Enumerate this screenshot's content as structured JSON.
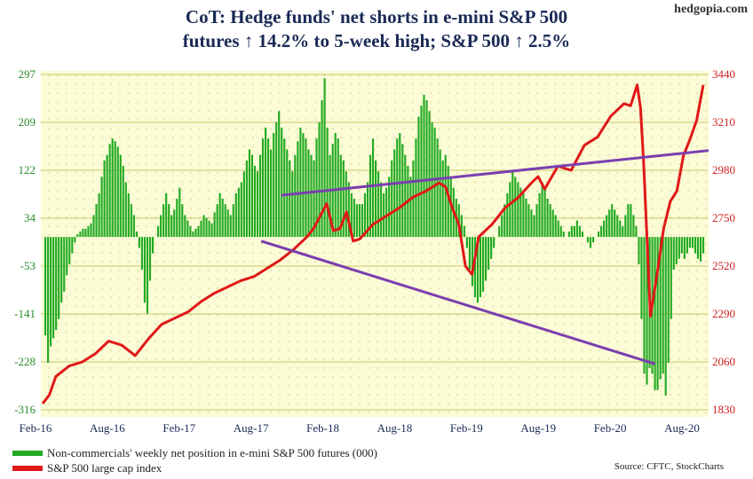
{
  "site": "hedgopia.com",
  "title_line1": "CoT: Hedge funds' net shorts in e-mini S&P 500",
  "title_line2": "futures ↑ 14.2% to 5-week high; S&P 500 ↑ 2.5%",
  "legend": {
    "bars": "Non-commercials' weekly net position in e-mini S&P 500 futures (000)",
    "line": "S&P 500 large cap index"
  },
  "source": "Source: CFTC, StockCharts",
  "colors": {
    "bars": "#22aa22",
    "line": "#e01818",
    "trend": "#7a3fb0",
    "plot_bg": "#fbfbd6",
    "grid": "#c9c96a"
  },
  "chart_data": {
    "type": "bar",
    "x_ticks": [
      "Feb-16",
      "Aug-16",
      "Feb-17",
      "Aug-17",
      "Feb-18",
      "Aug-18",
      "Feb-19",
      "Aug-19",
      "Feb-20",
      "Aug-20"
    ],
    "y_left": {
      "ticks": [
        "297",
        "209",
        "122",
        "34",
        "-53",
        "-141",
        "-228",
        "-316"
      ],
      "range": [
        -316,
        297
      ]
    },
    "y_right": {
      "ticks": [
        "3440",
        "3210",
        "2980",
        "2750",
        "2520",
        "2290",
        "2060",
        "1830"
      ],
      "range": [
        1830,
        3440
      ]
    },
    "series": [
      {
        "kind": "bar",
        "axis": "left",
        "values": [
          -180,
          -230,
          -200,
          -185,
          -170,
          -150,
          -120,
          -100,
          -70,
          -50,
          -30,
          -10,
          5,
          10,
          15,
          15,
          20,
          25,
          40,
          60,
          80,
          110,
          140,
          150,
          170,
          180,
          175,
          165,
          150,
          130,
          100,
          80,
          60,
          40,
          10,
          -20,
          -60,
          -120,
          -140,
          -80,
          -30,
          0,
          20,
          40,
          60,
          80,
          60,
          40,
          50,
          70,
          90,
          60,
          40,
          30,
          20,
          10,
          15,
          20,
          30,
          40,
          35,
          30,
          25,
          45,
          60,
          80,
          70,
          60,
          50,
          40,
          60,
          80,
          90,
          100,
          120,
          140,
          160,
          150,
          130,
          120,
          150,
          180,
          200,
          180,
          160,
          190,
          210,
          230,
          200,
          180,
          160,
          140,
          120,
          150,
          175,
          200,
          190,
          180,
          160,
          150,
          140,
          180,
          210,
          250,
          290,
          200,
          150,
          170,
          190,
          180,
          150,
          140,
          120,
          100,
          80,
          70,
          60,
          60,
          60,
          80,
          100,
          150,
          180,
          140,
          120,
          100,
          80,
          90,
          110,
          140,
          160,
          180,
          190,
          170,
          150,
          130,
          110,
          140,
          180,
          220,
          240,
          260,
          250,
          230,
          210,
          200,
          180,
          160,
          140,
          150,
          130,
          110,
          90,
          70,
          60,
          40,
          20,
          -20,
          -60,
          -90,
          -110,
          -120,
          -110,
          -100,
          -80,
          -60,
          -40,
          -20,
          0,
          20,
          40,
          60,
          80,
          100,
          120,
          110,
          100,
          90,
          80,
          70,
          60,
          50,
          40,
          60,
          80,
          100,
          90,
          70,
          60,
          50,
          40,
          30,
          20,
          10,
          0,
          10,
          20,
          20,
          30,
          20,
          10,
          0,
          -10,
          -20,
          -10,
          0,
          10,
          20,
          30,
          40,
          50,
          60,
          50,
          40,
          30,
          20,
          40,
          60,
          60,
          40,
          20,
          -50,
          -150,
          -250,
          -270,
          -240,
          -250,
          -280,
          -280,
          -260,
          -250,
          -290,
          -230,
          -150,
          -60,
          -50,
          -40,
          -30,
          -40,
          -30,
          -20,
          -20,
          -30,
          -40,
          -45,
          -30
        ],
        "bars_note": "approximate"
      },
      {
        "kind": "line",
        "axis": "right",
        "name": "S&P 500 large cap index",
        "x_frac": [
          0,
          0.01,
          0.02,
          0.04,
          0.06,
          0.08,
          0.1,
          0.12,
          0.14,
          0.16,
          0.18,
          0.2,
          0.22,
          0.24,
          0.26,
          0.28,
          0.3,
          0.32,
          0.34,
          0.36,
          0.38,
          0.4,
          0.41,
          0.42,
          0.43,
          0.44,
          0.45,
          0.46,
          0.47,
          0.48,
          0.5,
          0.52,
          0.54,
          0.56,
          0.58,
          0.6,
          0.61,
          0.62,
          0.63,
          0.64,
          0.65,
          0.66,
          0.68,
          0.7,
          0.72,
          0.74,
          0.75,
          0.76,
          0.78,
          0.8,
          0.82,
          0.84,
          0.86,
          0.88,
          0.89,
          0.9,
          0.905,
          0.91,
          0.92,
          0.93,
          0.94,
          0.95,
          0.96,
          0.97,
          0.98,
          0.99,
          1.0
        ],
        "values": [
          1860,
          1900,
          1990,
          2040,
          2060,
          2100,
          2160,
          2140,
          2090,
          2170,
          2240,
          2270,
          2300,
          2350,
          2390,
          2420,
          2450,
          2470,
          2510,
          2550,
          2600,
          2660,
          2700,
          2760,
          2820,
          2690,
          2700,
          2780,
          2640,
          2650,
          2720,
          2760,
          2800,
          2850,
          2880,
          2920,
          2900,
          2800,
          2720,
          2520,
          2480,
          2660,
          2720,
          2800,
          2850,
          2920,
          2950,
          2890,
          3000,
          2980,
          3100,
          3140,
          3240,
          3300,
          3290,
          3390,
          3280,
          3000,
          2280,
          2480,
          2700,
          2830,
          2880,
          3050,
          3130,
          3220,
          3390
        ],
        "line_note": "approximate"
      },
      {
        "kind": "trendline",
        "axis": "right",
        "from": [
          0.36,
          2860
        ],
        "to": [
          1.0,
          3075
        ]
      },
      {
        "kind": "trendline",
        "axis": "right",
        "from": [
          0.33,
          2640
        ],
        "to": [
          0.92,
          2050
        ]
      }
    ]
  }
}
